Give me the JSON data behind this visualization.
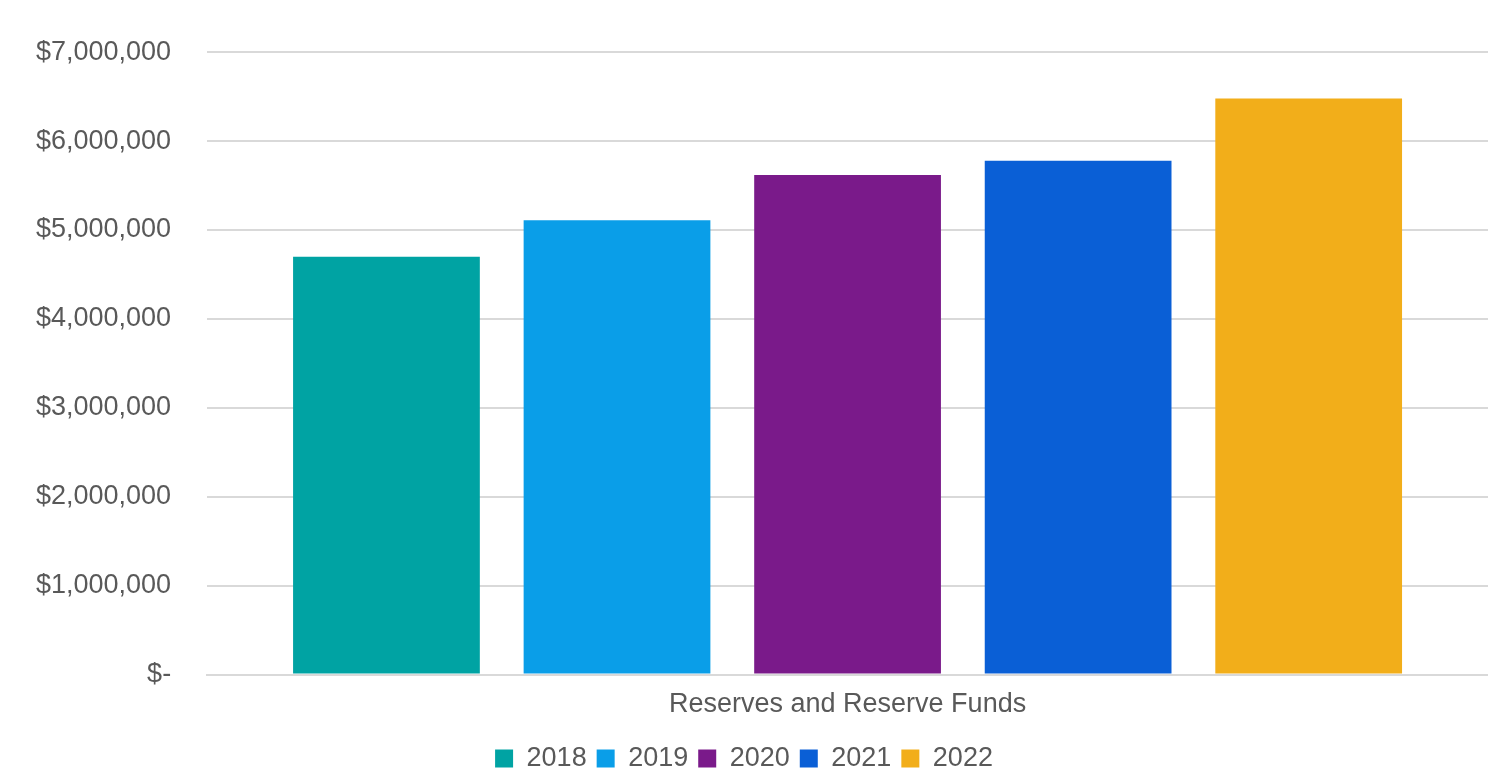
{
  "chart_data": {
    "type": "bar",
    "categories": [
      "Reserves and Reserve Funds"
    ],
    "series": [
      {
        "name": "2018",
        "color": "#00a3a3",
        "values": [
          4700000
        ]
      },
      {
        "name": "2019",
        "color": "#0a9ee8",
        "values": [
          5110000
        ]
      },
      {
        "name": "2020",
        "color": "#7a1a8a",
        "values": [
          5620000
        ]
      },
      {
        "name": "2021",
        "color": "#0a5fd6",
        "values": [
          5780000
        ]
      },
      {
        "name": "2022",
        "color": "#f2ae1a",
        "values": [
          6480000
        ]
      }
    ],
    "ylim": [
      0,
      7000000
    ],
    "yticks": [
      {
        "value": 0,
        "label": "$-"
      },
      {
        "value": 1000000,
        "label": "$1,000,000"
      },
      {
        "value": 2000000,
        "label": "$2,000,000"
      },
      {
        "value": 3000000,
        "label": "$3,000,000"
      },
      {
        "value": 4000000,
        "label": "$4,000,000"
      },
      {
        "value": 5000000,
        "label": "$5,000,000"
      },
      {
        "value": 6000000,
        "label": "$6,000,000"
      },
      {
        "value": 7000000,
        "label": "$7,000,000"
      }
    ],
    "grid": "y",
    "legend": "bottom"
  }
}
